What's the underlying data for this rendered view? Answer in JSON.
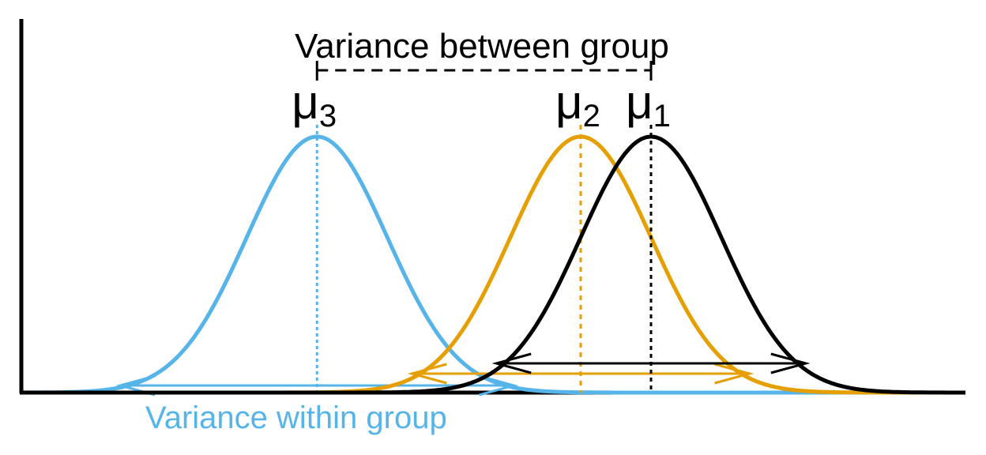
{
  "title": "Variance between group",
  "within_label": "Variance within group",
  "colors": {
    "group1": "#000000",
    "group2": "#E69F00",
    "group3": "#56B4E9",
    "axis": "#000000"
  },
  "groups": [
    {
      "id": "group1",
      "label": "μ",
      "subscript": "1",
      "color": "#000000",
      "mean": 1.0,
      "sd": 1.0
    },
    {
      "id": "group2",
      "label": "μ",
      "subscript": "2",
      "color": "#E69F00",
      "mean": 0.0,
      "sd": 1.0
    },
    {
      "id": "group3",
      "label": "μ",
      "subscript": "3",
      "color": "#56B4E9",
      "mean": -3.75,
      "sd": 1.0
    }
  ]
}
